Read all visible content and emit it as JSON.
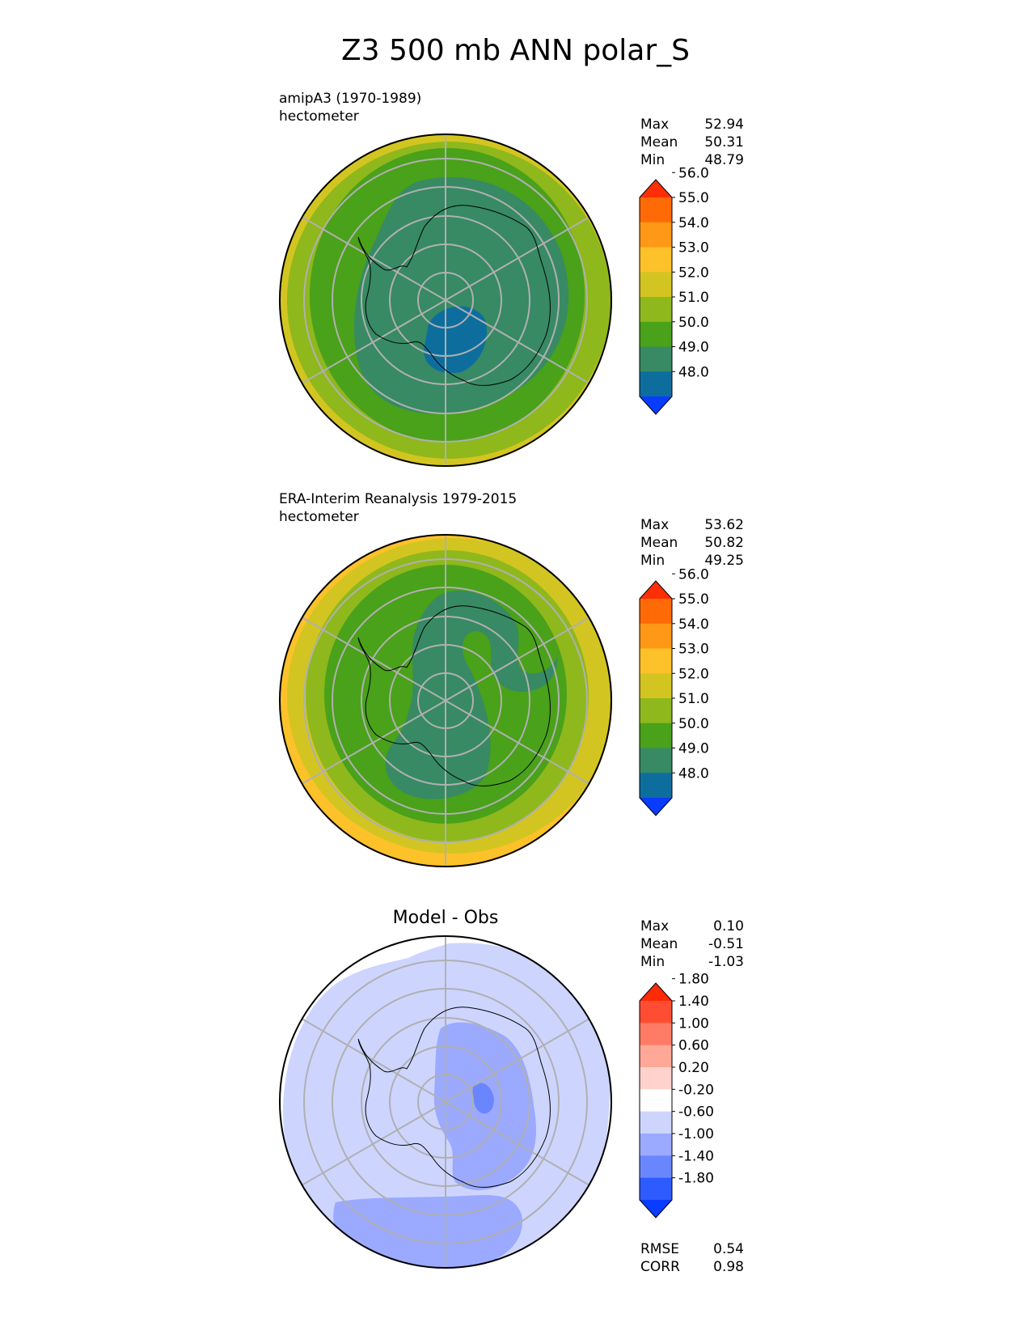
{
  "title": "Z3 500 mb ANN polar_S",
  "chart_data": [
    {
      "type": "heatmap",
      "projection": "south-polar-stereographic",
      "title": "amipA3 (1970-1989)",
      "units": "hectometer",
      "stats": {
        "max": "52.94",
        "mean": "50.31",
        "min": "48.79"
      },
      "levels": [
        "48.0",
        "49.0",
        "50.0",
        "51.0",
        "52.0",
        "53.0",
        "54.0",
        "55.0",
        "56.0"
      ],
      "colors": [
        "#0a3cff",
        "#0d6e9e",
        "#378a63",
        "#4aa11a",
        "#8fb81c",
        "#d3c521",
        "#fdc12a",
        "#fe9816",
        "#fe6a06",
        "#fe2f06"
      ],
      "field_bands": [
        {
          "level": "52.0-53.0",
          "color": "#d3c521"
        },
        {
          "level": "51.0-52.0",
          "color": "#8fb81c"
        },
        {
          "level": "50.0-51.0",
          "color": "#4aa11a"
        },
        {
          "level": "49.0-50.0",
          "color": "#378a63"
        },
        {
          "level": "48.0-49.0",
          "color": "#0d6e9e"
        }
      ]
    },
    {
      "type": "heatmap",
      "projection": "south-polar-stereographic",
      "title": "ERA-Interim Reanalysis 1979-2015",
      "units": "hectometer",
      "stats": {
        "max": "53.62",
        "mean": "50.82",
        "min": "49.25"
      },
      "levels": [
        "48.0",
        "49.0",
        "50.0",
        "51.0",
        "52.0",
        "53.0",
        "54.0",
        "55.0",
        "56.0"
      ],
      "colors": [
        "#0a3cff",
        "#0d6e9e",
        "#378a63",
        "#4aa11a",
        "#8fb81c",
        "#d3c521",
        "#fdc12a",
        "#fe9816",
        "#fe6a06",
        "#fe2f06"
      ],
      "field_bands": [
        {
          "level": "53.0-54.0",
          "color": "#fdc12a"
        },
        {
          "level": "52.0-53.0",
          "color": "#d3c521"
        },
        {
          "level": "51.0-52.0",
          "color": "#8fb81c"
        },
        {
          "level": "50.0-51.0",
          "color": "#4aa11a"
        },
        {
          "level": "49.0-50.0",
          "color": "#378a63"
        }
      ]
    },
    {
      "type": "heatmap",
      "projection": "south-polar-stereographic",
      "title": "Model - Obs",
      "stats": {
        "max": "0.10",
        "mean": "-0.51",
        "min": "-1.03"
      },
      "metrics": {
        "rmse_label": "RMSE",
        "rmse": "0.54",
        "corr_label": "CORR",
        "corr": "0.98"
      },
      "levels": [
        "-1.80",
        "-1.40",
        "-1.00",
        "-0.60",
        "-0.20",
        "0.20",
        "0.60",
        "1.00",
        "1.40",
        "1.80"
      ],
      "colors": [
        "#0a3cff",
        "#2e5bff",
        "#6a86ff",
        "#9baaff",
        "#cdd5ff",
        "#ffffff",
        "#ffd2cc",
        "#ffa898",
        "#ff7b66",
        "#ff4d33",
        "#ff2a06"
      ],
      "field_bands": [
        {
          "level": "-0.20-0.20",
          "color": "#ffffff"
        },
        {
          "level": "-0.60--0.20",
          "color": "#cdd5ff"
        },
        {
          "level": "-1.00--0.60",
          "color": "#9baaff"
        },
        {
          "level": "-1.40--1.00",
          "color": "#6a86ff"
        }
      ]
    }
  ],
  "stat_labels": {
    "max": "Max",
    "mean": "Mean",
    "min": "Min"
  }
}
